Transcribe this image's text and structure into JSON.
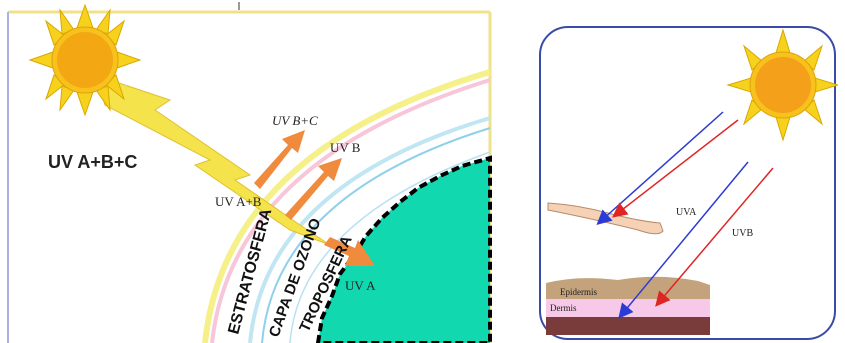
{
  "left_diagram": {
    "incoming_label": "UV A+B+C",
    "ray_labels": {
      "uvbc": "UV B+C",
      "uvb": "UV B",
      "uvab": "UV A+B",
      "uva": "UV A"
    },
    "layers": {
      "stratosphere": "ESTRATOSFERA",
      "ozone": "CAPA DE OZONO",
      "troposphere": "TROPOSFERA"
    },
    "colors": {
      "sun": "#f7d21c",
      "sun_core": "#f3a712",
      "lightning": "#f4e34a",
      "arrows": "#f08a3c",
      "earth": "#12d8b0"
    }
  },
  "right_diagram": {
    "ray_labels": {
      "uva": "UVA",
      "uvb": "UVB"
    },
    "skin_layers": {
      "epidermis": "Epidermis",
      "dermis": "Dermis"
    },
    "colors": {
      "uva_ray": "#2b3bd6",
      "uvb_ray": "#e02424",
      "border": "#3a4aa8"
    }
  }
}
